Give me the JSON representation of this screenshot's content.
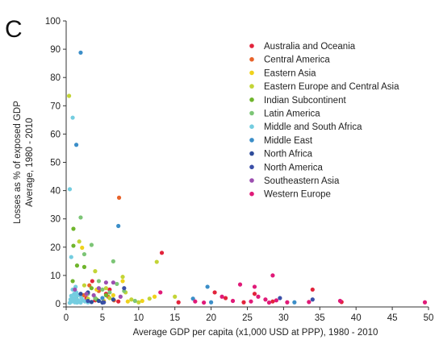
{
  "panel_label": "C",
  "chart_data": {
    "type": "scatter",
    "title": "",
    "xlabel": "Average GDP per capita (x1,000 USD at PPP), 1980 - 2010",
    "ylabel_lines": [
      "Losses as % of exposed GDP",
      "Average, 1980 - 2010"
    ],
    "xlim": [
      0,
      50
    ],
    "ylim": [
      0,
      100
    ],
    "xticks": [
      0,
      5,
      10,
      15,
      20,
      25,
      30,
      35,
      40,
      45,
      50
    ],
    "yticks": [
      0,
      10,
      20,
      30,
      40,
      50,
      60,
      70,
      80,
      90,
      100
    ],
    "grid": false,
    "legend_position": "top-right",
    "series": [
      {
        "name": "Australia and Oceania",
        "color": "#e2233b",
        "points": [
          [
            1.2,
            1.5
          ],
          [
            2.8,
            2.0
          ],
          [
            4.0,
            1.2
          ],
          [
            5.5,
            3.5
          ],
          [
            7.2,
            0.8
          ],
          [
            13.2,
            18.0
          ],
          [
            20.5,
            4.0
          ],
          [
            22.0,
            2.0
          ],
          [
            24.5,
            0.5
          ],
          [
            26.0,
            3.5
          ],
          [
            28.5,
            0.8
          ],
          [
            34.0,
            5.0
          ],
          [
            38.0,
            0.6
          ],
          [
            3.6,
            8.0
          ],
          [
            6.0,
            5.0
          ],
          [
            15.5,
            0.5
          ]
        ]
      },
      {
        "name": "Central America",
        "color": "#e8632a",
        "points": [
          [
            7.3,
            37.5
          ],
          [
            3.2,
            6.5
          ],
          [
            4.5,
            4.5
          ],
          [
            5.8,
            2.5
          ],
          [
            6.6,
            1.2
          ],
          [
            2.4,
            3.0
          ]
        ]
      },
      {
        "name": "Eastern Asia",
        "color": "#f0d21b",
        "points": [
          [
            2.2,
            19.8
          ],
          [
            4.2,
            5.0
          ],
          [
            6.5,
            3.0
          ],
          [
            8.5,
            0.8
          ],
          [
            10.5,
            1.0
          ],
          [
            12.2,
            2.5
          ],
          [
            7.8,
            8.0
          ],
          [
            5.2,
            1.0
          ]
        ]
      },
      {
        "name": "Eastern Europe and Central Asia",
        "color": "#c3d436",
        "points": [
          [
            0.4,
            73.5
          ],
          [
            1.8,
            22.0
          ],
          [
            2.5,
            6.5
          ],
          [
            4.0,
            11.5
          ],
          [
            5.5,
            5.5
          ],
          [
            6.0,
            2.0
          ],
          [
            7.8,
            9.5
          ],
          [
            9.0,
            1.5
          ],
          [
            10.0,
            0.5
          ],
          [
            11.5,
            1.8
          ],
          [
            12.5,
            14.8
          ],
          [
            15.0,
            2.5
          ],
          [
            3.0,
            1.8
          ],
          [
            8.2,
            4.0
          ]
        ]
      },
      {
        "name": "Indian Subcontinent",
        "color": "#6fb52c",
        "points": [
          [
            1.0,
            26.5
          ],
          [
            1.0,
            20.5
          ],
          [
            1.5,
            13.5
          ],
          [
            2.5,
            13.0
          ],
          [
            3.5,
            5.5
          ],
          [
            4.2,
            1.5
          ],
          [
            5.5,
            3.0
          ],
          [
            0.9,
            8.0
          ]
        ]
      },
      {
        "name": "Latin America",
        "color": "#7cc576",
        "points": [
          [
            2.0,
            30.5
          ],
          [
            3.5,
            20.8
          ],
          [
            2.5,
            17.5
          ],
          [
            4.5,
            8.0
          ],
          [
            6.5,
            15.0
          ],
          [
            7.0,
            7.0
          ],
          [
            8.0,
            4.5
          ],
          [
            9.5,
            1.0
          ],
          [
            1.4,
            2.5
          ],
          [
            5.0,
            5.0
          ],
          [
            6.0,
            4.0
          ],
          [
            4.0,
            2.0
          ],
          [
            3.0,
            3.5
          ]
        ]
      },
      {
        "name": "Middle and South Africa",
        "color": "#74cde0",
        "points": [
          [
            0.5,
            40.5
          ],
          [
            0.9,
            65.8
          ],
          [
            0.7,
            16.5
          ],
          [
            0.9,
            5.0
          ],
          [
            1.1,
            3.5
          ],
          [
            1.3,
            2.5
          ],
          [
            1.5,
            1.5
          ],
          [
            1.7,
            1.0
          ],
          [
            1.9,
            3.0
          ],
          [
            2.1,
            2.0
          ],
          [
            0.6,
            1.5
          ],
          [
            0.8,
            0.8
          ],
          [
            1.0,
            2.0
          ],
          [
            1.2,
            0.5
          ],
          [
            1.4,
            4.0
          ],
          [
            1.6,
            3.0
          ],
          [
            1.8,
            0.6
          ],
          [
            2.3,
            1.2
          ],
          [
            2.6,
            0.8
          ],
          [
            3.0,
            0.5
          ],
          [
            0.5,
            0.3
          ],
          [
            1.0,
            1.0
          ],
          [
            1.5,
            0.4
          ],
          [
            2.0,
            0.4
          ],
          [
            0.7,
            2.8
          ],
          [
            1.3,
            6.0
          ]
        ]
      },
      {
        "name": "Middle East",
        "color": "#3b8ec8",
        "points": [
          [
            2.0,
            88.8
          ],
          [
            1.4,
            56.2
          ],
          [
            7.2,
            27.5
          ],
          [
            17.5,
            1.8
          ],
          [
            19.5,
            6.0
          ],
          [
            20.0,
            0.5
          ],
          [
            31.5,
            0.5
          ],
          [
            5.0,
            2.0
          ]
        ]
      },
      {
        "name": "North Africa",
        "color": "#2e4c9a",
        "points": [
          [
            2.0,
            3.5
          ],
          [
            3.0,
            4.0
          ],
          [
            4.5,
            1.0
          ],
          [
            6.5,
            1.5
          ],
          [
            3.5,
            0.6
          ],
          [
            5.0,
            0.4
          ]
        ]
      },
      {
        "name": "North America",
        "color": "#3b4fa8",
        "points": [
          [
            5.2,
            0.5
          ],
          [
            8.0,
            5.5
          ],
          [
            34.0,
            1.5
          ],
          [
            29.5,
            2.0
          ],
          [
            3.0,
            1.0
          ]
        ]
      },
      {
        "name": "Southeastern Asia",
        "color": "#9c4fb0",
        "points": [
          [
            1.2,
            5.0
          ],
          [
            2.8,
            3.5
          ],
          [
            4.5,
            5.5
          ],
          [
            6.5,
            7.5
          ],
          [
            3.8,
            3.0
          ],
          [
            7.5,
            2.5
          ],
          [
            5.5,
            7.5
          ]
        ]
      },
      {
        "name": "Western Europe",
        "color": "#e01a78",
        "points": [
          [
            49.5,
            0.5
          ],
          [
            28.5,
            10.0
          ],
          [
            26.0,
            6.0
          ],
          [
            24.0,
            6.8
          ],
          [
            21.5,
            2.5
          ],
          [
            27.5,
            1.5
          ],
          [
            25.5,
            0.8
          ],
          [
            29.0,
            1.2
          ],
          [
            30.5,
            0.5
          ],
          [
            17.8,
            0.8
          ],
          [
            13.0,
            4.0
          ],
          [
            23.0,
            1.0
          ],
          [
            26.5,
            2.5
          ],
          [
            28.0,
            0.4
          ],
          [
            33.5,
            0.6
          ],
          [
            37.8,
            1.0
          ],
          [
            19.0,
            0.4
          ]
        ]
      }
    ]
  }
}
